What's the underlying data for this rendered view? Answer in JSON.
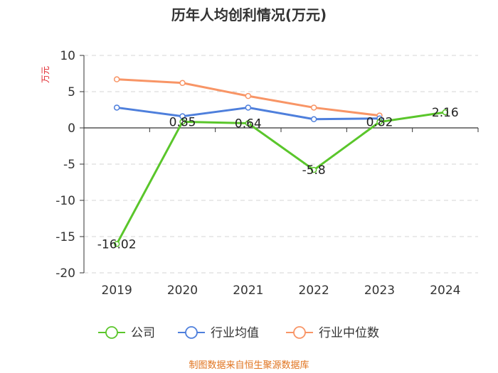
{
  "chart_data": {
    "type": "line",
    "title": "历年人均创利情况(万元)",
    "ylabel": "万元",
    "categories": [
      "2019",
      "2020",
      "2021",
      "2022",
      "2023",
      "2024"
    ],
    "ylim": [
      -20,
      10
    ],
    "yticks": [
      10,
      5,
      0,
      -5,
      -10,
      -15,
      -20
    ],
    "grid": true,
    "legend_position": "bottom",
    "series": [
      {
        "name": "公司",
        "color": "#5ac62b",
        "values": [
          -16.02,
          0.85,
          0.64,
          -5.8,
          0.82,
          2.16
        ],
        "labels": [
          "-16.02",
          "0.85",
          "0.64",
          "-5.8",
          "0.82",
          "2.16"
        ]
      },
      {
        "name": "行业均值",
        "color": "#4e7fdc",
        "values": [
          2.8,
          1.6,
          2.8,
          1.2,
          1.3,
          null
        ]
      },
      {
        "name": "行业中位数",
        "color": "#f89566",
        "values": [
          6.7,
          6.2,
          4.4,
          2.8,
          1.7,
          null
        ]
      }
    ],
    "source": "制图数据来自恒生聚源数据库",
    "ylabel_color": "#e0232a",
    "source_color": "#e0731e"
  }
}
